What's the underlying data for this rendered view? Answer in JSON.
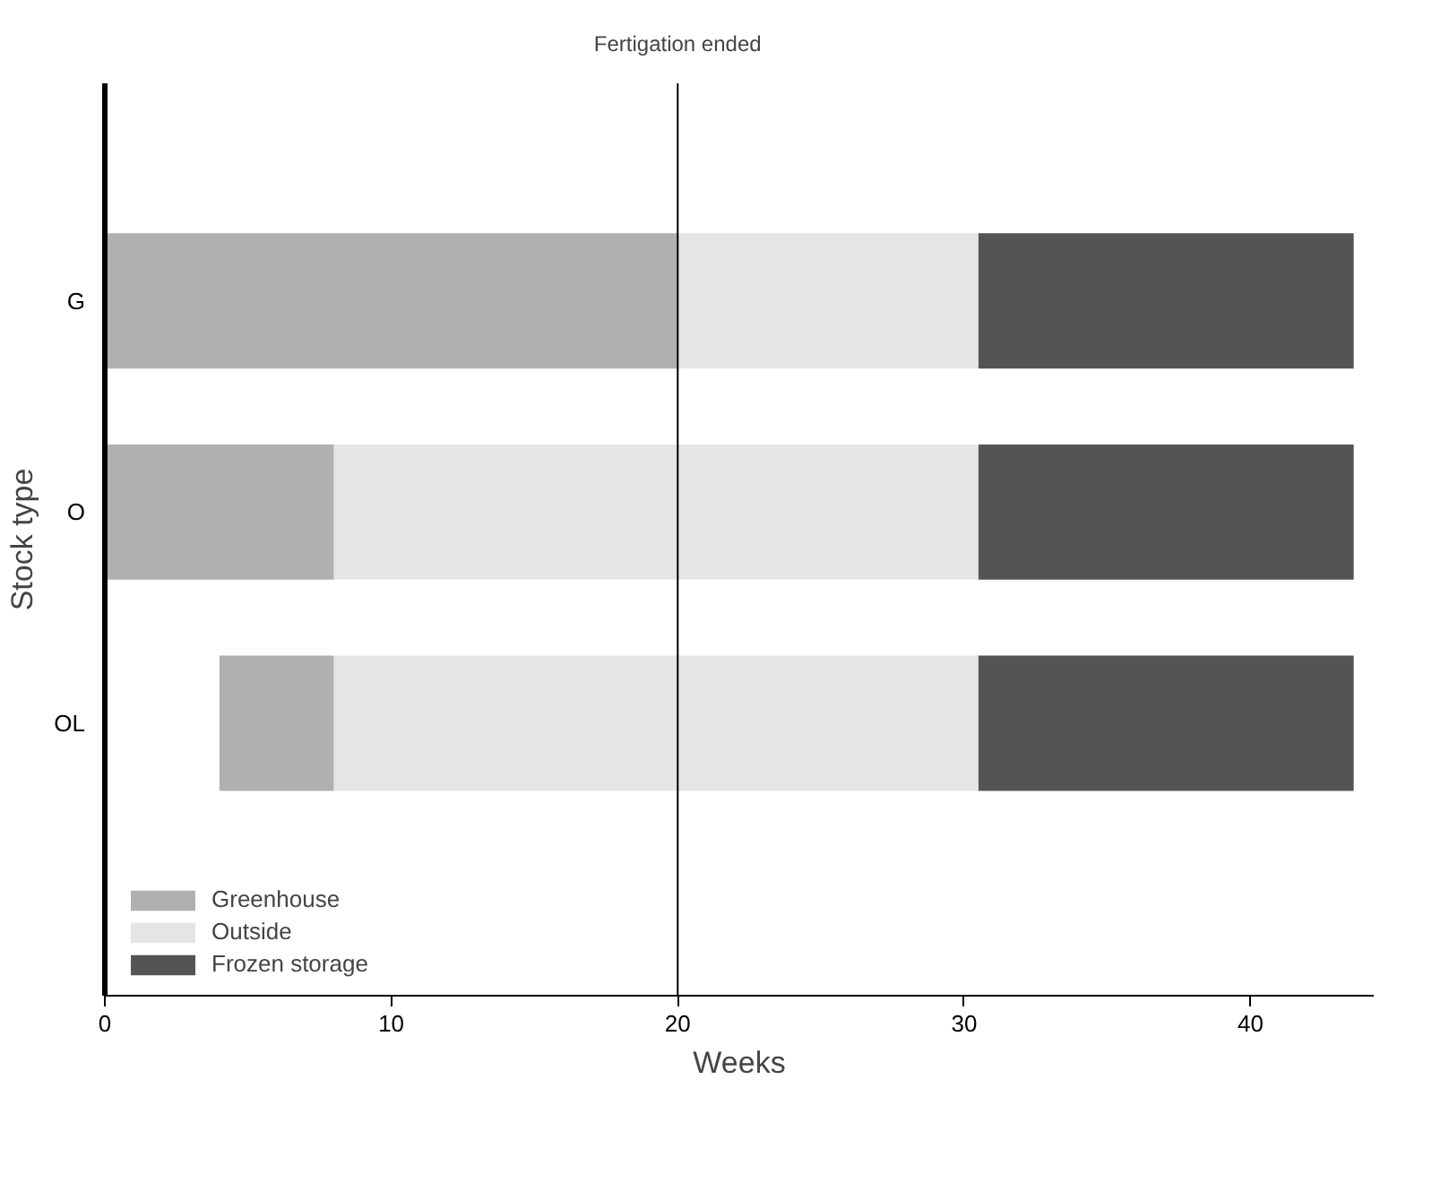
{
  "chart_data": {
    "type": "bar",
    "orientation": "horizontal",
    "categories": [
      "G",
      "O",
      "OL"
    ],
    "series": [
      {
        "name": "Greenhouse",
        "color": "#b0b0b0",
        "base": [
          0,
          0,
          4
        ],
        "values": [
          20,
          8,
          4
        ]
      },
      {
        "name": "Outside",
        "color": "#e5e5e5",
        "base": [
          20,
          8,
          8
        ],
        "values": [
          10.5,
          22.5,
          22.5
        ]
      },
      {
        "name": "Frozen storage",
        "color": "#545454",
        "base": [
          30.5,
          30.5,
          30.5
        ],
        "values": [
          13.1,
          13.1,
          13.1
        ]
      }
    ],
    "xlabel": "Weeks",
    "ylabel": "Stock type",
    "xlim": [
      0,
      44.3
    ],
    "xticks": [
      0,
      10,
      20,
      30,
      40
    ],
    "ref_lines": [
      {
        "axis": "x",
        "value": 20,
        "label": "Fertigation ended",
        "color": "#000000"
      }
    ],
    "grid": false,
    "legend": "bottom left"
  }
}
